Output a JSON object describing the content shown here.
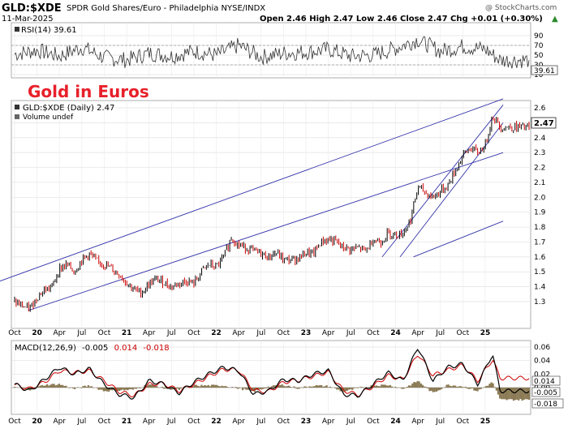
{
  "header": {
    "symbol": "GLD:$XDE",
    "description": "SPDR Gold Shares/Euro - Philadelphia NYSE/INDX",
    "date": "11-Mar-2025",
    "quote": "Open 2.46 High 2.47 Low 2.46 Close 2.47 Chg +0.01 (+0.30%)",
    "quote_arrow": "▲",
    "brand": "@ StockCharts.com"
  },
  "annotation": {
    "text": "Gold in Euros",
    "color": "#e8202a"
  },
  "colors": {
    "price_up": "#000000",
    "price_down": "#cc0000",
    "trendline": "#3333aa",
    "macd": "#000000",
    "signal": "#cc0000",
    "histogram": "#8b7a55",
    "rsi": "#333333"
  },
  "chart_data": [
    {
      "type": "line",
      "panel": "rsi",
      "label": "RSI(14) 39.61",
      "last_value_label": "39.61",
      "y_ticks": [
        "90",
        "70",
        "50",
        "30",
        "10"
      ],
      "ylim": [
        0,
        100
      ],
      "reference_levels": [
        70,
        30
      ],
      "x": [
        "2019-10",
        "2020-01",
        "2020-04",
        "2020-07",
        "2020-10",
        "2021-01",
        "2021-04",
        "2021-07",
        "2021-10",
        "2022-01",
        "2022-04",
        "2022-07",
        "2022-10",
        "2023-01",
        "2023-04",
        "2023-07",
        "2023-10",
        "2024-01",
        "2024-04",
        "2024-07",
        "2024-10",
        "2025-01",
        "2025-03"
      ],
      "values": [
        52,
        60,
        48,
        66,
        45,
        40,
        54,
        48,
        58,
        50,
        70,
        46,
        54,
        56,
        62,
        48,
        50,
        64,
        82,
        58,
        68,
        62,
        39.61
      ]
    },
    {
      "type": "line",
      "panel": "price",
      "label": "GLD:$XDE (Daily) 2.47",
      "volume_label": "Volume undef",
      "last_value_label": "2.47",
      "y_ticks": [
        "2.6",
        "2.5",
        "2.4",
        "2.3",
        "2.2",
        "2.1",
        "2.0",
        "1.9",
        "1.8",
        "1.7",
        "1.6",
        "1.5",
        "1.4",
        "1.3"
      ],
      "ylim": [
        1.2,
        2.68
      ],
      "x_ticks": [
        "Oct",
        "20",
        "Apr",
        "Jul",
        "Oct",
        "21",
        "Apr",
        "Jul",
        "Oct",
        "22",
        "Apr",
        "Jul",
        "Oct",
        "23",
        "Apr",
        "Jul",
        "Oct",
        "24",
        "Apr",
        "Jul",
        "Oct",
        "25"
      ],
      "x": [
        "2019-10",
        "2019-11",
        "2019-12",
        "2020-01",
        "2020-02",
        "2020-03",
        "2020-04",
        "2020-05",
        "2020-06",
        "2020-07",
        "2020-08",
        "2020-09",
        "2020-10",
        "2020-11",
        "2020-12",
        "2021-01",
        "2021-02",
        "2021-03",
        "2021-04",
        "2021-05",
        "2021-06",
        "2021-07",
        "2021-08",
        "2021-09",
        "2021-10",
        "2021-11",
        "2021-12",
        "2022-01",
        "2022-02",
        "2022-03",
        "2022-04",
        "2022-05",
        "2022-06",
        "2022-07",
        "2022-08",
        "2022-09",
        "2022-10",
        "2022-11",
        "2022-12",
        "2023-01",
        "2023-02",
        "2023-03",
        "2023-04",
        "2023-05",
        "2023-06",
        "2023-07",
        "2023-08",
        "2023-09",
        "2023-10",
        "2023-11",
        "2023-12",
        "2024-01",
        "2024-02",
        "2024-03",
        "2024-04",
        "2024-05",
        "2024-06",
        "2024-07",
        "2024-08",
        "2024-09",
        "2024-10",
        "2024-11",
        "2024-12",
        "2025-01",
        "2025-02",
        "2025-03"
      ],
      "values": [
        1.3,
        1.27,
        1.25,
        1.33,
        1.38,
        1.4,
        1.52,
        1.55,
        1.5,
        1.58,
        1.62,
        1.57,
        1.55,
        1.52,
        1.48,
        1.43,
        1.38,
        1.36,
        1.42,
        1.45,
        1.43,
        1.4,
        1.42,
        1.44,
        1.42,
        1.5,
        1.55,
        1.53,
        1.6,
        1.73,
        1.68,
        1.66,
        1.64,
        1.62,
        1.6,
        1.63,
        1.58,
        1.58,
        1.59,
        1.63,
        1.62,
        1.7,
        1.72,
        1.7,
        1.66,
        1.65,
        1.66,
        1.64,
        1.72,
        1.7,
        1.76,
        1.75,
        1.76,
        1.85,
        2.07,
        2.03,
        2.0,
        2.04,
        2.08,
        2.18,
        2.28,
        2.33,
        2.3,
        2.35,
        2.55,
        2.47
      ]
    },
    {
      "type": "line",
      "panel": "macd",
      "label_prefix": "MACD(12,26,9)",
      "label_values": [
        "-0.005",
        "0.014",
        "-0.018"
      ],
      "label_colors": [
        "#000000",
        "#cc0000",
        "#cc0000"
      ],
      "value_labels": [
        "0.014",
        "-0.005",
        "-0.018"
      ],
      "y_ticks": [
        "0.06",
        "0.04",
        "0.02",
        "0.00"
      ],
      "ylim": [
        -0.022,
        0.068
      ],
      "x_ticks": [
        "Oct",
        "20",
        "Apr",
        "Jul",
        "Oct",
        "21",
        "Apr",
        "Jul",
        "Oct",
        "22",
        "Apr",
        "Jul",
        "Oct",
        "23",
        "Apr",
        "Jul",
        "Oct",
        "24",
        "Apr",
        "Jul",
        "Oct",
        "25"
      ],
      "x": [
        "2019-10",
        "2019-12",
        "2020-02",
        "2020-04",
        "2020-06",
        "2020-08",
        "2020-10",
        "2020-12",
        "2021-02",
        "2021-04",
        "2021-06",
        "2021-08",
        "2021-10",
        "2021-12",
        "2022-02",
        "2022-04",
        "2022-06",
        "2022-08",
        "2022-10",
        "2022-12",
        "2023-02",
        "2023-04",
        "2023-06",
        "2023-08",
        "2023-10",
        "2023-12",
        "2024-02",
        "2024-04",
        "2024-06",
        "2024-08",
        "2024-10",
        "2024-12",
        "2025-02",
        "2025-03"
      ],
      "series": [
        {
          "name": "MACD",
          "values": [
            0.005,
            -0.005,
            0.012,
            0.03,
            0.02,
            0.028,
            0.005,
            -0.01,
            -0.015,
            0.01,
            0.005,
            -0.008,
            0.008,
            0.02,
            0.03,
            0.025,
            -0.01,
            -0.005,
            0.012,
            0.01,
            0.02,
            0.025,
            -0.01,
            -0.012,
            0.005,
            0.022,
            0.01,
            0.06,
            0.01,
            0.03,
            0.035,
            0.005,
            0.05,
            -0.005
          ]
        },
        {
          "name": "Signal",
          "values": [
            0.004,
            -0.002,
            0.008,
            0.025,
            0.022,
            0.025,
            0.01,
            -0.006,
            -0.012,
            0.005,
            0.006,
            -0.005,
            0.005,
            0.017,
            0.027,
            0.026,
            -0.004,
            -0.006,
            0.008,
            0.011,
            0.017,
            0.023,
            -0.004,
            -0.011,
            0.002,
            0.018,
            0.012,
            0.05,
            0.018,
            0.026,
            0.033,
            0.01,
            0.042,
            0.014
          ]
        },
        {
          "name": "Histogram",
          "values": [
            0.001,
            -0.003,
            0.004,
            0.005,
            -0.002,
            0.003,
            -0.005,
            -0.004,
            -0.003,
            0.005,
            -0.001,
            -0.003,
            0.003,
            0.003,
            0.003,
            -0.001,
            -0.006,
            0.001,
            0.004,
            -0.001,
            0.003,
            0.002,
            -0.006,
            -0.001,
            0.003,
            0.004,
            -0.002,
            0.01,
            -0.008,
            0.004,
            0.002,
            -0.005,
            0.008,
            -0.018
          ]
        }
      ]
    }
  ]
}
